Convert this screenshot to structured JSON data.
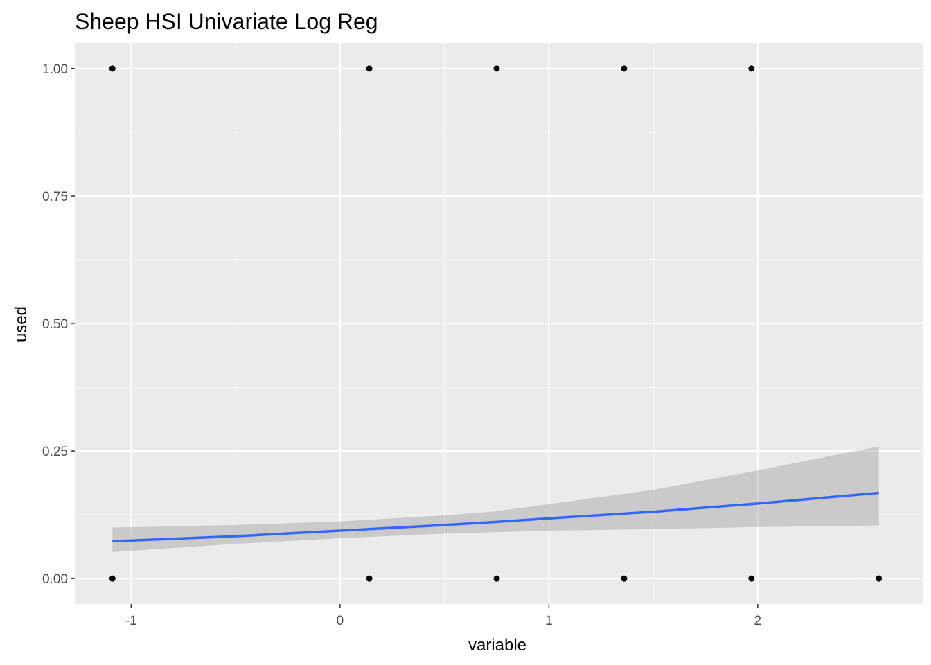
{
  "chart_data": {
    "type": "scatter",
    "title": "Sheep HSI Univariate Log Reg",
    "xlabel": "variable",
    "ylabel": "used",
    "xlim": [
      -1.27,
      2.79
    ],
    "ylim": [
      -0.05,
      1.05
    ],
    "x_ticks": [
      -1,
      0,
      1,
      2
    ],
    "x_tick_labels": [
      "-1",
      "0",
      "1",
      "2"
    ],
    "y_ticks": [
      0,
      0.25,
      0.5,
      0.75,
      1.0
    ],
    "y_tick_labels": [
      "0.00",
      "0.25",
      "0.50",
      "0.75",
      "1.00"
    ],
    "grid": true,
    "legend": "none",
    "points": [
      {
        "x": -1.09,
        "y": 1
      },
      {
        "x": 0.14,
        "y": 1
      },
      {
        "x": 0.75,
        "y": 1
      },
      {
        "x": 1.36,
        "y": 1
      },
      {
        "x": 1.97,
        "y": 1
      },
      {
        "x": -1.09,
        "y": 0
      },
      {
        "x": 0.14,
        "y": 0
      },
      {
        "x": 0.75,
        "y": 0
      },
      {
        "x": 1.36,
        "y": 0
      },
      {
        "x": 1.97,
        "y": 0
      },
      {
        "x": 2.58,
        "y": 0
      }
    ],
    "fit_line": {
      "x": [
        -1.09,
        -0.5,
        0,
        0.5,
        0.75,
        1.0,
        1.5,
        2.0,
        2.58
      ],
      "y": [
        0.073,
        0.083,
        0.094,
        0.105,
        0.111,
        0.118,
        0.131,
        0.147,
        0.168
      ]
    },
    "confidence_band": {
      "x": [
        -1.09,
        -0.5,
        0,
        0.5,
        0.75,
        1.0,
        1.5,
        2.0,
        2.58
      ],
      "lower": [
        0.052,
        0.068,
        0.079,
        0.088,
        0.091,
        0.094,
        0.097,
        0.101,
        0.104
      ],
      "upper": [
        0.1,
        0.105,
        0.112,
        0.124,
        0.132,
        0.146,
        0.174,
        0.212,
        0.259
      ]
    },
    "colors": {
      "panel": "#ebebeb",
      "grid": "#ffffff",
      "line": "#3366ff",
      "band": "#999999",
      "point": "#000000"
    }
  }
}
